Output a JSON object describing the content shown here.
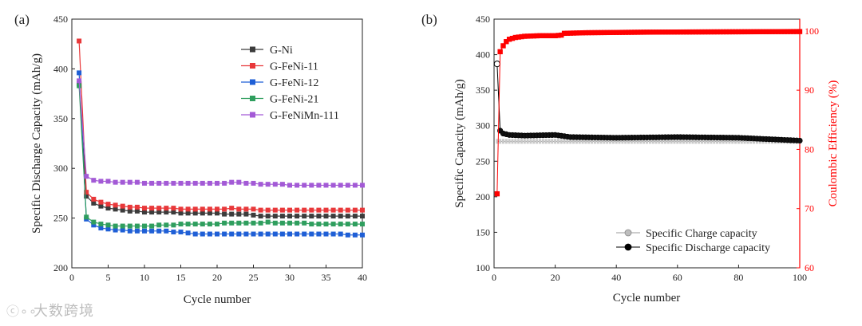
{
  "chart_data": [
    {
      "panel_label": "(a)",
      "type": "line",
      "xlabel": "Cycle number",
      "ylabel": "Specific Discharge Capacity (mAh/g)",
      "xlim": [
        0,
        40
      ],
      "ylim": [
        200,
        450
      ],
      "xticks": [
        0,
        5,
        10,
        15,
        20,
        25,
        30,
        35,
        40
      ],
      "yticks": [
        200,
        250,
        300,
        350,
        400,
        450
      ],
      "legend_position": "top-right",
      "series": [
        {
          "name": "G-Ni",
          "color": "#3c3c3c",
          "values": [
            385,
            272,
            265,
            262,
            260,
            259,
            258,
            257,
            257,
            256,
            256,
            256,
            256,
            256,
            255,
            255,
            255,
            255,
            255,
            255,
            254,
            254,
            254,
            254,
            253,
            252,
            252,
            252,
            252,
            252,
            252,
            252,
            252,
            252,
            252,
            252,
            252,
            252,
            252,
            252
          ]
        },
        {
          "name": "G-FeNi-11",
          "color": "#e8383a",
          "values": [
            428,
            276,
            269,
            266,
            264,
            263,
            262,
            261,
            261,
            260,
            260,
            260,
            260,
            260,
            259,
            259,
            259,
            259,
            259,
            259,
            259,
            260,
            259,
            259,
            259,
            258,
            258,
            258,
            258,
            258,
            258,
            258,
            258,
            258,
            258,
            258,
            258,
            258,
            258,
            258
          ]
        },
        {
          "name": "G-FeNi-12",
          "color": "#1f5fd6",
          "values": [
            396,
            249,
            243,
            240,
            239,
            238,
            238,
            237,
            237,
            237,
            237,
            237,
            237,
            236,
            236,
            235,
            234,
            234,
            234,
            234,
            234,
            234,
            234,
            234,
            234,
            234,
            234,
            234,
            234,
            234,
            234,
            234,
            234,
            234,
            234,
            234,
            234,
            233,
            233,
            233
          ]
        },
        {
          "name": "G-FeNi-21",
          "color": "#2f9e5e",
          "values": [
            383,
            251,
            246,
            244,
            243,
            242,
            242,
            242,
            242,
            242,
            242,
            243,
            243,
            243,
            244,
            244,
            244,
            244,
            244,
            244,
            245,
            245,
            245,
            245,
            245,
            245,
            246,
            245,
            245,
            245,
            245,
            245,
            244,
            244,
            244,
            244,
            244,
            244,
            244,
            244
          ]
        },
        {
          "name": "G-FeNiMn-111",
          "color": "#a35ad6",
          "values": [
            388,
            292,
            288,
            287,
            287,
            286,
            286,
            286,
            286,
            285,
            285,
            285,
            285,
            285,
            285,
            285,
            285,
            285,
            285,
            285,
            285,
            286,
            286,
            285,
            285,
            284,
            284,
            284,
            284,
            283,
            283,
            283,
            283,
            283,
            283,
            283,
            283,
            283,
            283,
            283
          ]
        }
      ]
    },
    {
      "panel_label": "(b)",
      "type": "scatter",
      "xlabel": "Cycle number",
      "ylabel": "Specific Capacity (mAh/g)",
      "y2label": "Coulombic Efficiency (%)",
      "xlim": [
        0,
        100
      ],
      "ylim": [
        100,
        450
      ],
      "y2lim": [
        60,
        102
      ],
      "xticks": [
        0,
        20,
        40,
        60,
        80,
        100
      ],
      "yticks": [
        100,
        150,
        200,
        250,
        300,
        350,
        400,
        450
      ],
      "y2ticks": [
        60,
        70,
        80,
        90,
        100
      ],
      "legend_position": "bottom-center",
      "series": [
        {
          "name": "Specific Charge capacity",
          "color": "#9a9a9a",
          "axis": "left",
          "x_start": 1,
          "x_end": 100,
          "start_value": 278,
          "end_value": 278,
          "first_value": 278
        },
        {
          "name": "Specific Discharge capacity",
          "color": "#000000",
          "axis": "left",
          "points": [
            [
              1,
              387
            ],
            [
              2,
              293
            ],
            [
              3,
              289
            ],
            [
              5,
              287
            ],
            [
              10,
              286
            ],
            [
              20,
              287
            ],
            [
              25,
              284
            ],
            [
              40,
              283
            ],
            [
              60,
              284
            ],
            [
              80,
              283
            ],
            [
              90,
              281
            ],
            [
              100,
              279
            ]
          ]
        },
        {
          "name": "Coulombic Efficiency",
          "color": "#ff0000",
          "axis": "right",
          "points": [
            [
              1,
              72.5
            ],
            [
              2,
              96.5
            ],
            [
              3,
              97.5
            ],
            [
              4,
              98.2
            ],
            [
              5,
              98.6
            ],
            [
              7,
              98.9
            ],
            [
              10,
              99.1
            ],
            [
              15,
              99.2
            ],
            [
              20,
              99.2
            ],
            [
              22,
              99.3
            ],
            [
              23,
              99.6
            ],
            [
              30,
              99.7
            ],
            [
              50,
              99.8
            ],
            [
              100,
              99.9
            ]
          ]
        }
      ]
    }
  ],
  "watermark": {
    "text": "大数跨境",
    "icon_name": "logo-icon"
  }
}
